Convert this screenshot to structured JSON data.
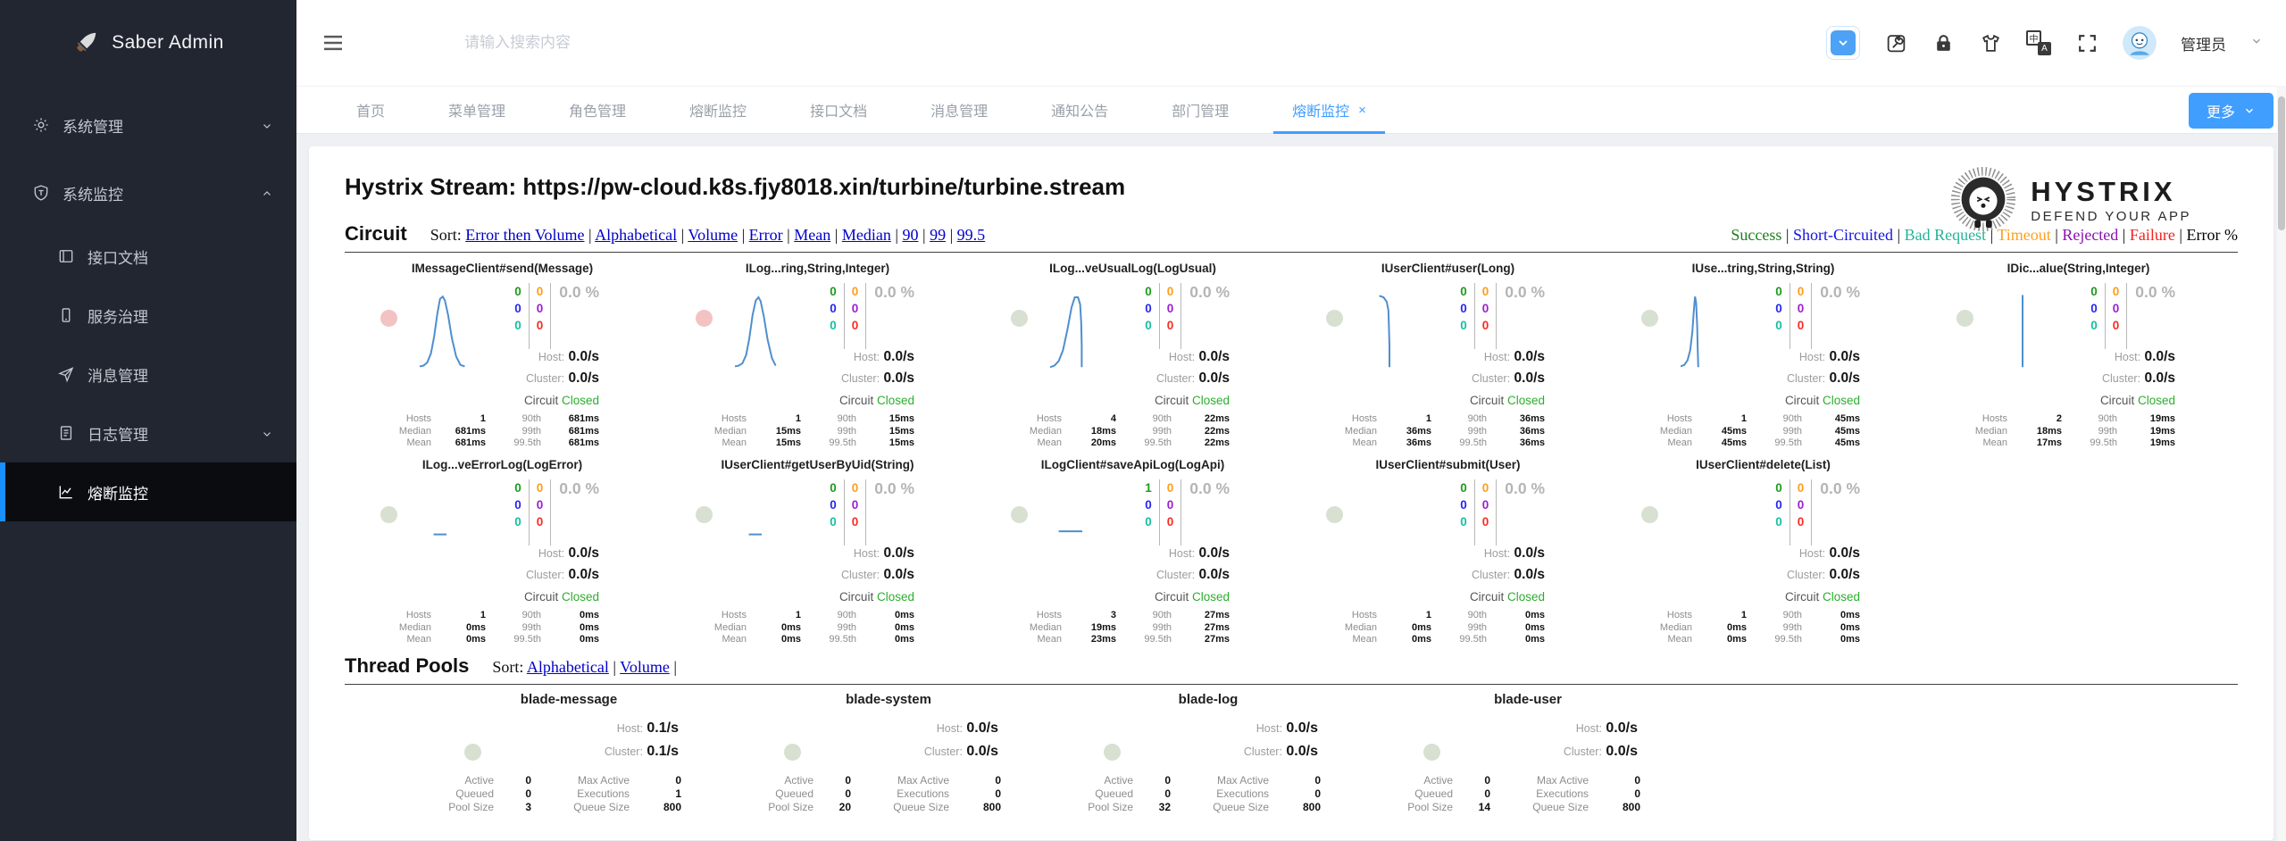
{
  "theme": {
    "accent": "#409eff",
    "link_blue": "#0000cc",
    "closed_green": "#2cae2c"
  },
  "sidebar": {
    "logo_text": "Saber Admin",
    "items": [
      {
        "label": "系统管理"
      },
      {
        "label": "系统监控"
      },
      {
        "label": "接口文档"
      },
      {
        "label": "服务治理"
      },
      {
        "label": "消息管理"
      },
      {
        "label": "日志管理"
      },
      {
        "label": "熔断监控"
      }
    ]
  },
  "topbar": {
    "search_placeholder": "请输入搜索内容",
    "username": "管理员",
    "translate_primary": "中",
    "translate_secondary": "A"
  },
  "tabs": {
    "items": [
      {
        "label": "首页"
      },
      {
        "label": "菜单管理"
      },
      {
        "label": "角色管理"
      },
      {
        "label": "熔断监控"
      },
      {
        "label": "接口文档"
      },
      {
        "label": "消息管理"
      },
      {
        "label": "通知公告"
      },
      {
        "label": "部门管理"
      },
      {
        "label": "熔断监控",
        "active": true,
        "close_glyph": "×"
      }
    ],
    "more_label": "更多"
  },
  "monitor": {
    "title": "Hystrix Stream: https://pw-cloud.k8s.fjy8018.xin/turbine/turbine.stream",
    "logo": {
      "name": "HYSTRIX",
      "tagline": "DEFEND YOUR APP"
    },
    "labels": {
      "host": "Host:",
      "cluster": "Cluster:",
      "circuit": "Circuit",
      "hosts": "Hosts",
      "median": "Median",
      "mean": "Mean",
      "p90": "90th",
      "p99": "99th",
      "p995": "99.5th",
      "active": "Active",
      "queued": "Queued",
      "pool_size": "Pool Size",
      "max_active": "Max Active",
      "executions": "Executions",
      "queue_size": "Queue Size"
    },
    "circuit_section": {
      "heading": "Circuit",
      "sort_label": "Sort:",
      "sort_links": [
        "Error then Volume",
        "Alphabetical",
        "Volume",
        "Error",
        "Mean",
        "Median",
        "90",
        "99",
        "99.5"
      ],
      "legend": [
        {
          "label": "Success",
          "color": "#1d7f1d"
        },
        {
          "label": "Short-Circuited",
          "color": "#1414e0"
        },
        {
          "label": "Bad Request",
          "color": "#23b498"
        },
        {
          "label": "Timeout",
          "color": "#ff9f1a"
        },
        {
          "label": "Rejected",
          "color": "#8a12b0"
        },
        {
          "label": "Failure",
          "color": "#f5201d"
        },
        {
          "label": "Error %",
          "color": "#000000"
        }
      ]
    },
    "circuits": [
      {
        "name": "IMessageClient#send(Message)",
        "counts": {
          "success": "0",
          "short_circuited": "0",
          "bad_request": "0",
          "timeout": "0",
          "rejected": "0",
          "failure": "0"
        },
        "error_pct": "0.0 %",
        "host_rate": "0.0/s",
        "cluster_rate": "0.0/s",
        "status": "Closed",
        "hosts": "1",
        "median": "681ms",
        "mean": "681ms",
        "p90": "681ms",
        "p99": "681ms",
        "p995": "681ms",
        "circle_color": "#f2c3c2",
        "spark": "0,97 7,96 14,92 21,80 27,58 33,28 38,9 43,6 47,11 53,30 60,60 68,84 76,95 84,97"
      },
      {
        "name": "ILog...ring,String,Integer)",
        "counts": {
          "success": "0",
          "short_circuited": "0",
          "bad_request": "0",
          "timeout": "0",
          "rejected": "0",
          "failure": "0"
        },
        "error_pct": "0.0 %",
        "host_rate": "0.0/s",
        "cluster_rate": "0.0/s",
        "status": "Closed",
        "hosts": "1",
        "median": "15ms",
        "mean": "15ms",
        "p90": "15ms",
        "p99": "15ms",
        "p995": "15ms",
        "circle_color": "#f2c3c2",
        "spark": "0,97 7,96 14,93 21,82 27,60 33,30 39,11 44,7 48,12 54,32 61,62 69,86 76,96"
      },
      {
        "name": "ILog...veUsualLog(LogUsual)",
        "counts": {
          "success": "0",
          "short_circuited": "0",
          "bad_request": "0",
          "timeout": "0",
          "rejected": "0",
          "failure": "0"
        },
        "error_pct": "0.0 %",
        "host_rate": "0.0/s",
        "cluster_rate": "0.0/s",
        "status": "Closed",
        "hosts": "4",
        "median": "18ms",
        "mean": "20ms",
        "p90": "22ms",
        "p99": "22ms",
        "p995": "22ms",
        "circle_color": "#d7e0d1",
        "spark": "0,98 8,96 16,90 24,76 32,50 40,20 46,7 52,7 56,16 58,40 59,70 59,98"
      },
      {
        "name": "IUserClient#user(Long)",
        "counts": {
          "success": "0",
          "short_circuited": "0",
          "bad_request": "0",
          "timeout": "0",
          "rejected": "0",
          "failure": "0"
        },
        "error_pct": "0.0 %",
        "host_rate": "0.0/s",
        "cluster_rate": "0.0/s",
        "status": "Closed",
        "hosts": "1",
        "median": "36ms",
        "mean": "36ms",
        "p90": "36ms",
        "p99": "36ms",
        "p995": "36ms",
        "circle_color": "#d7e0d1",
        "spark": "26,5 34,7 40,13 43,24 44,45 45,70 45,98"
      },
      {
        "name": "IUse...tring,String,String)",
        "counts": {
          "success": "0",
          "short_circuited": "0",
          "bad_request": "0",
          "timeout": "0",
          "rejected": "0",
          "failure": "0"
        },
        "error_pct": "0.0 %",
        "host_rate": "0.0/s",
        "cluster_rate": "0.0/s",
        "status": "Closed",
        "hosts": "1",
        "median": "45ms",
        "mean": "45ms",
        "p90": "45ms",
        "p99": "45ms",
        "p995": "45ms",
        "circle_color": "#d7e0d1",
        "spark": "0,97 7,95 13,89 18,76 22,52 25,22 27,6 29,14 31,44 32,74 33,98"
      },
      {
        "name": "IDic...alue(String,Integer)",
        "counts": {
          "success": "0",
          "short_circuited": "0",
          "bad_request": "0",
          "timeout": "0",
          "rejected": "0",
          "failure": "0"
        },
        "error_pct": "0.0 %",
        "host_rate": "0.0/s",
        "cluster_rate": "0.0/s",
        "status": "Closed",
        "hosts": "2",
        "median": "18ms",
        "mean": "17ms",
        "p90": "19ms",
        "p99": "19ms",
        "p995": "19ms",
        "circle_color": "#d7e0d1",
        "spark": "50,4 50,98"
      },
      {
        "name": "ILog...veErrorLog(LogError)",
        "counts": {
          "success": "0",
          "short_circuited": "0",
          "bad_request": "0",
          "timeout": "0",
          "rejected": "0",
          "failure": "0"
        },
        "error_pct": "0.0 %",
        "host_rate": "0.0/s",
        "cluster_rate": "0.0/s",
        "status": "Closed",
        "hosts": "1",
        "median": "0ms",
        "mean": "0ms",
        "p90": "0ms",
        "p99": "0ms",
        "p995": "0ms",
        "circle_color": "#d7e0d1",
        "spark": "26,60 50,60"
      },
      {
        "name": "IUserClient#getUserByUid(String)",
        "counts": {
          "success": "0",
          "short_circuited": "0",
          "bad_request": "0",
          "timeout": "0",
          "rejected": "0",
          "failure": "0"
        },
        "error_pct": "0.0 %",
        "host_rate": "0.0/s",
        "cluster_rate": "0.0/s",
        "status": "Closed",
        "hosts": "1",
        "median": "0ms",
        "mean": "0ms",
        "p90": "0ms",
        "p99": "0ms",
        "p995": "0ms",
        "circle_color": "#d7e0d1",
        "spark": "26,60 50,60"
      },
      {
        "name": "ILogClient#saveApiLog(LogApi)",
        "counts": {
          "success": "1",
          "short_circuited": "0",
          "bad_request": "0",
          "timeout": "0",
          "rejected": "0",
          "failure": "0"
        },
        "error_pct": "0.0 %",
        "host_rate": "0.0/s",
        "cluster_rate": "0.0/s",
        "status": "Closed",
        "hosts": "3",
        "median": "19ms",
        "mean": "23ms",
        "p90": "27ms",
        "p99": "27ms",
        "p995": "27ms",
        "circle_color": "#d7e0d1",
        "spark": "16,56 60,56"
      },
      {
        "name": "IUserClient#submit(User)",
        "counts": {
          "success": "0",
          "short_circuited": "0",
          "bad_request": "0",
          "timeout": "0",
          "rejected": "0",
          "failure": "0"
        },
        "error_pct": "0.0 %",
        "host_rate": "0.0/s",
        "cluster_rate": "0.0/s",
        "status": "Closed",
        "hosts": "1",
        "median": "0ms",
        "mean": "0ms",
        "p90": "0ms",
        "p99": "0ms",
        "p995": "0ms",
        "circle_color": "#d7e0d1",
        "spark": ""
      },
      {
        "name": "IUserClient#delete(List)",
        "counts": {
          "success": "0",
          "short_circuited": "0",
          "bad_request": "0",
          "timeout": "0",
          "rejected": "0",
          "failure": "0"
        },
        "error_pct": "0.0 %",
        "host_rate": "0.0/s",
        "cluster_rate": "0.0/s",
        "status": "Closed",
        "hosts": "1",
        "median": "0ms",
        "mean": "0ms",
        "p90": "0ms",
        "p99": "0ms",
        "p995": "0ms",
        "circle_color": "#d7e0d1",
        "spark": ""
      }
    ],
    "pool_section": {
      "heading": "Thread Pools",
      "sort_label": "Sort:",
      "sort_links": [
        "Alphabetical",
        "Volume"
      ]
    },
    "pools": [
      {
        "name": "blade-message",
        "host_rate": "0.1/s",
        "cluster_rate": "0.1/s",
        "active": "0",
        "queued": "0",
        "pool_size": "3",
        "max_active": "0",
        "executions": "1",
        "queue_size": "800",
        "circle_color": "#d7e0d1"
      },
      {
        "name": "blade-system",
        "host_rate": "0.0/s",
        "cluster_rate": "0.0/s",
        "active": "0",
        "queued": "0",
        "pool_size": "20",
        "max_active": "0",
        "executions": "0",
        "queue_size": "800",
        "circle_color": "#d7e0d1"
      },
      {
        "name": "blade-log",
        "host_rate": "0.0/s",
        "cluster_rate": "0.0/s",
        "active": "0",
        "queued": "0",
        "pool_size": "32",
        "max_active": "0",
        "executions": "0",
        "queue_size": "800",
        "circle_color": "#d7e0d1"
      },
      {
        "name": "blade-user",
        "host_rate": "0.0/s",
        "cluster_rate": "0.0/s",
        "active": "0",
        "queued": "0",
        "pool_size": "14",
        "max_active": "0",
        "executions": "0",
        "queue_size": "800",
        "circle_color": "#d7e0d1"
      }
    ]
  }
}
